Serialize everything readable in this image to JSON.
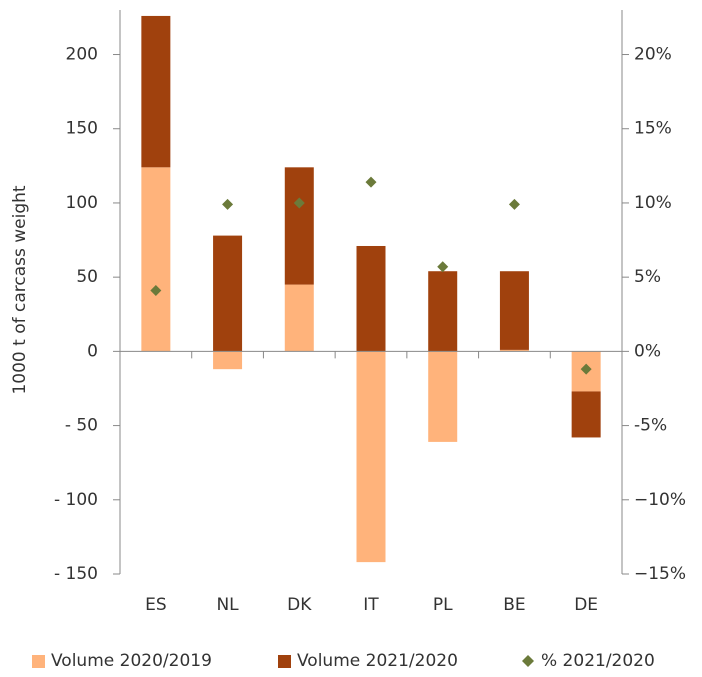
{
  "chart_data": {
    "type": "bar",
    "y_label": "1000 t of carcass weight",
    "categories": [
      "ES",
      "NL",
      "DK",
      "IT",
      "PL",
      "BE",
      "DE"
    ],
    "series": [
      {
        "name": "Volume 2020/2019",
        "color": "#ffb37b",
        "values": [
          124,
          -12,
          45,
          -142,
          -61,
          1,
          -27
        ]
      },
      {
        "name": "Volume 2021/2020",
        "color": "#a0410d",
        "values": [
          102,
          78,
          79,
          71,
          54,
          53,
          -31
        ]
      },
      {
        "name": "% 2021/2020",
        "color": "#6b7a3a",
        "type": "scatter",
        "axis": "y2",
        "values": [
          4.1,
          9.9,
          10.0,
          11.4,
          5.7,
          9.9,
          -1.2
        ]
      }
    ],
    "ylim": [
      -150,
      230
    ],
    "yticks": [
      {
        "value": -150,
        "label": "- 150"
      },
      {
        "value": -100,
        "label": "- 100"
      },
      {
        "value": -50,
        "label": "- 50"
      },
      0,
      50,
      100,
      150,
      200
    ],
    "y2lim": [
      -15,
      23
    ],
    "y2ticks": [
      {
        "value": -15,
        "label": "−15%"
      },
      {
        "value": -10,
        "label": "−10%"
      },
      {
        "value": -5,
        "label": "-5%"
      },
      {
        "value": 0,
        "label": "0%"
      },
      {
        "value": 5,
        "label": "5%"
      },
      {
        "value": 10,
        "label": "10%"
      },
      {
        "value": 15,
        "label": "15%"
      },
      {
        "value": 20,
        "label": "20%"
      }
    ]
  }
}
